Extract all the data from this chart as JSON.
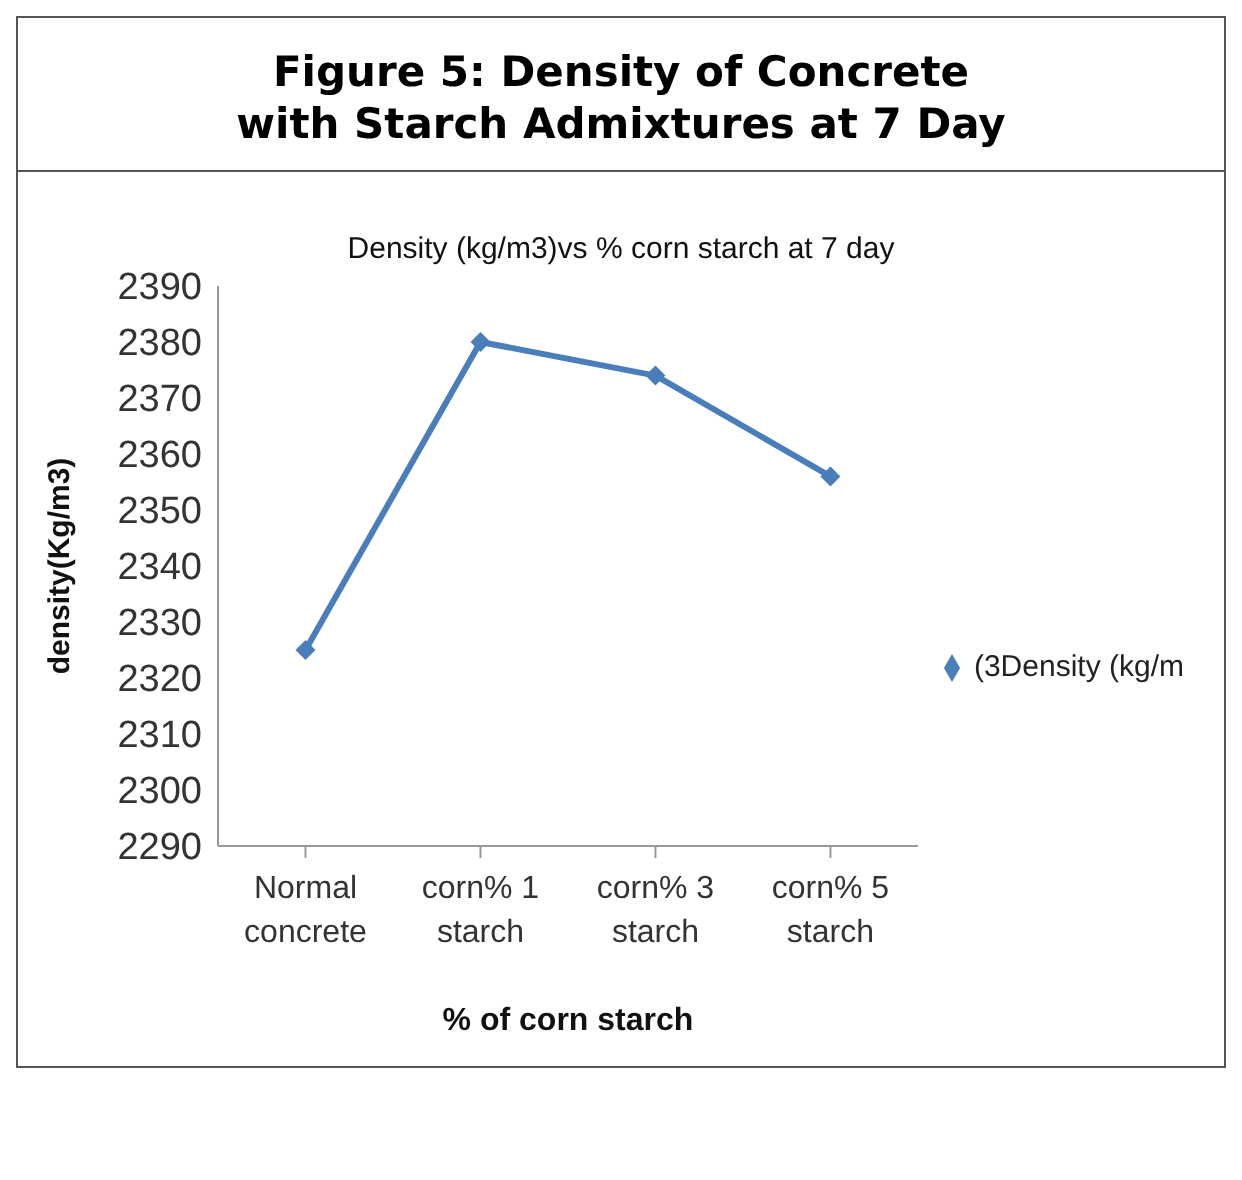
{
  "chart_data": {
    "type": "line",
    "title": "Figure 5: Density of Concrete\nwith Starch Admixtures at 7 Day",
    "subtitle": "Density (kg/m3)vs % corn starch at 7 day",
    "xlabel": "% of corn starch",
    "ylabel": "density(Kg/m3)",
    "categories": [
      "Normal concrete",
      "corn% 1 starch",
      "corn% 3 starch",
      "corn% 5 starch"
    ],
    "series": [
      {
        "name": "(3Density (kg/m",
        "color": "#4a7ebb",
        "values": [
          2325,
          2380,
          2374,
          2356
        ]
      }
    ],
    "ylim": [
      2290,
      2390
    ],
    "yticks": [
      2290,
      2300,
      2310,
      2320,
      2330,
      2340,
      2350,
      2360,
      2370,
      2380,
      2390
    ],
    "grid": false,
    "legend": "right",
    "marker": "diamond",
    "line_style": "solid"
  }
}
